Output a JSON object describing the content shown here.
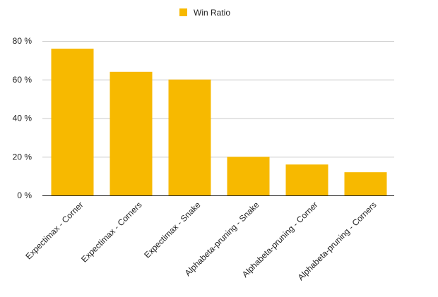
{
  "chart_data": {
    "type": "bar",
    "categories": [
      "Expectimax - Corner",
      "Expectimax - Corners",
      "Expectimax - Snake",
      "Alphabeta-pruning - Snake",
      "Alphabeta-pruning - Corner",
      "Alphabeta-pruning - Corners"
    ],
    "series": [
      {
        "name": "Win Ratio",
        "color": "#f7b900",
        "values": [
          76,
          64,
          60,
          20,
          16,
          12
        ]
      }
    ],
    "ylim": [
      0,
      80
    ],
    "yticks": [
      0,
      20,
      40,
      60,
      80
    ],
    "ytick_suffix": " %",
    "grid": true,
    "legend_position": "top-center"
  }
}
